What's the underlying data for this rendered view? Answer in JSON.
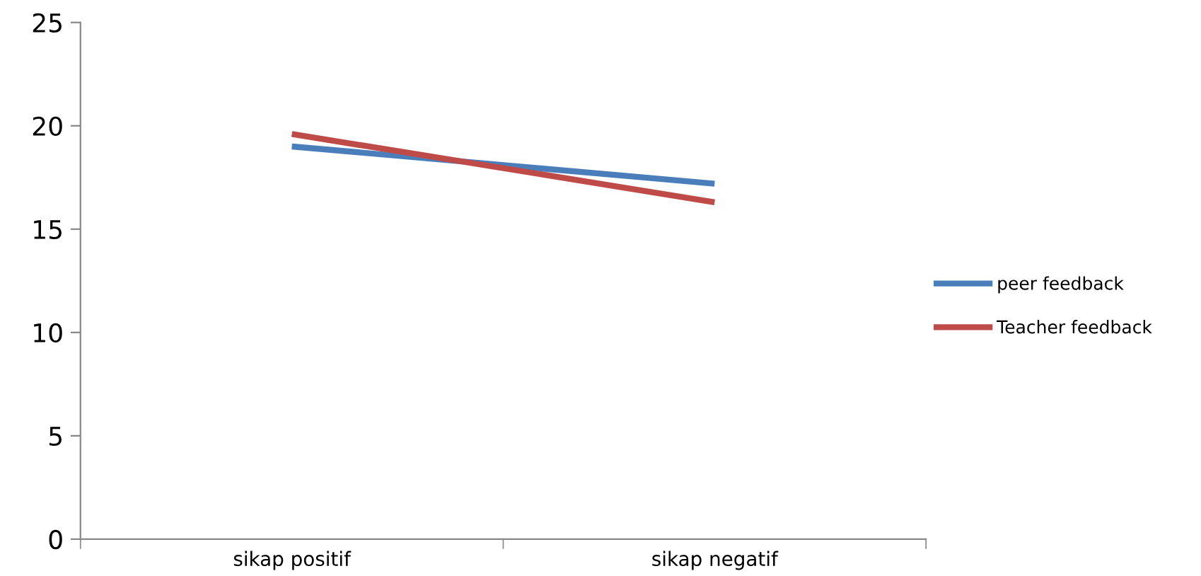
{
  "chart_data": {
    "type": "line",
    "categories": [
      "sikap positif",
      "sikap negatif"
    ],
    "series": [
      {
        "name": "peer feedback",
        "color": "#4a7ebb",
        "values": [
          19.0,
          17.2
        ]
      },
      {
        "name": "Teacher feedback",
        "color": "#be4b48",
        "values": [
          19.6,
          16.3
        ]
      }
    ],
    "ylim": [
      0,
      25
    ],
    "yticks": [
      0,
      5,
      10,
      15,
      20,
      25
    ],
    "grid": false,
    "legend": "right",
    "marker": "none"
  }
}
